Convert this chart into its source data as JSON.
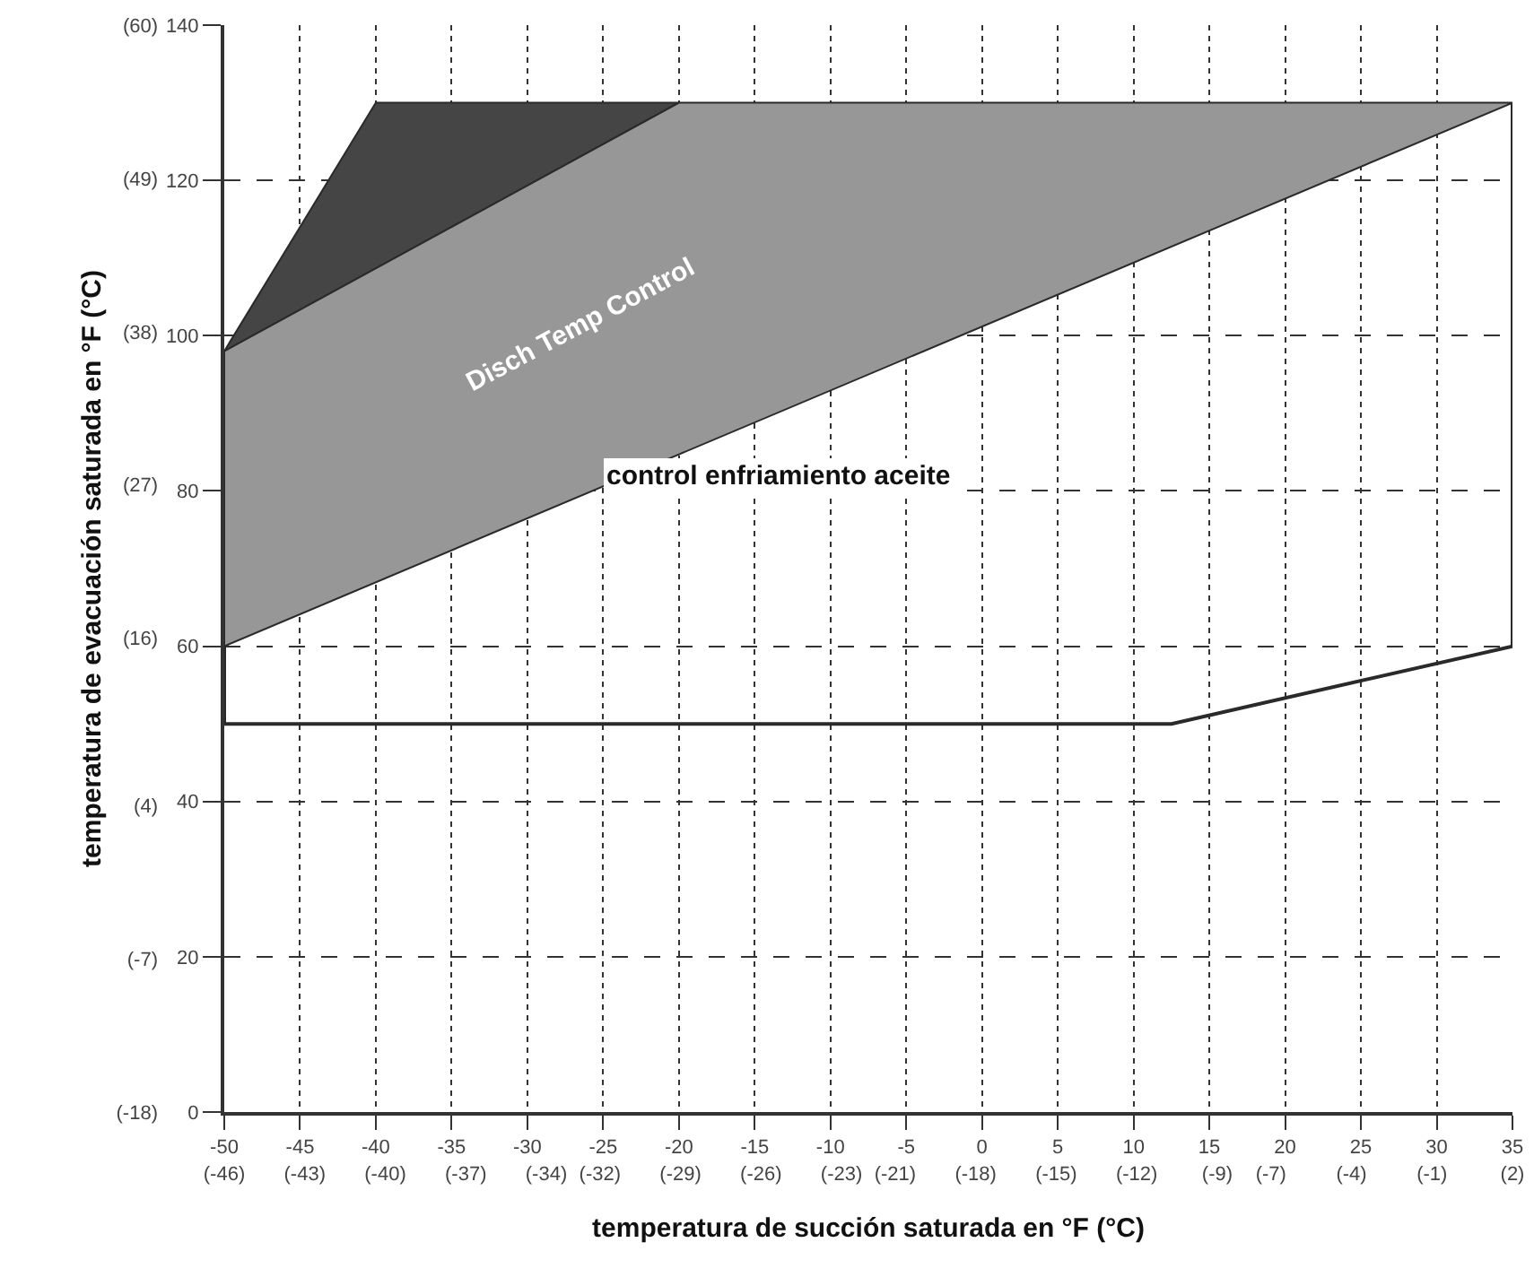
{
  "chart_data": {
    "type": "area",
    "xlabel": "temperatura de succión saturada en °F (°C)",
    "y2label": "temperatura de evacuación saturada en °F (°C)",
    "series": [
      {
        "color": "#454545",
        "x": [
          -50,
          -40,
          -20,
          -50
        ],
        "values": [
          98,
          130,
          130,
          98
        ]
      },
      {
        "color": "#979797",
        "x": [
          -50,
          -20,
          35,
          -50,
          -50
        ],
        "values": [
          98,
          130,
          130,
          60,
          98
        ]
      },
      {
        "type": "line",
        "color": "#2a2a2a",
        "x": [
          -50,
          -50,
          12.5,
          35,
          35
        ],
        "values": [
          60,
          50,
          50,
          60,
          130
        ]
      }
    ],
    "annotations": [
      "Disch Temp Control",
      "control enfriamiento aceite"
    ],
    "xlim": [
      -50,
      35
    ],
    "ylim": [
      0,
      140
    ],
    "xticks": [
      -50,
      -45,
      -40,
      -35,
      -30,
      -25,
      -20,
      -15,
      -10,
      -5,
      0,
      5,
      10,
      15,
      20,
      25,
      30,
      35
    ],
    "yticks": [
      0,
      20,
      40,
      60,
      80,
      100,
      120,
      140
    ],
    "x2lim": [
      -46,
      2
    ],
    "x2ticks": [
      {
        "value": -46,
        "label": "(-46)"
      },
      {
        "value": -43,
        "label": "(-43)"
      },
      {
        "value": -40,
        "label": "(-40)"
      },
      {
        "value": -37,
        "label": "(-37)"
      },
      {
        "value": -34,
        "label": "(-34)"
      },
      {
        "value": -32,
        "label": "(-32)"
      },
      {
        "value": -29,
        "label": "(-29)"
      },
      {
        "value": -26,
        "label": "(-26)"
      },
      {
        "value": -23,
        "label": "(-23)"
      },
      {
        "value": -21,
        "label": "(-21)"
      },
      {
        "value": -18,
        "label": "(-18)"
      },
      {
        "value": -15,
        "label": "(-15)"
      },
      {
        "value": -12,
        "label": "(-12)"
      },
      {
        "value": -9,
        "label": "(-9)"
      },
      {
        "value": -7,
        "label": "(-7)"
      },
      {
        "value": -4,
        "label": "(-4)"
      },
      {
        "value": -1,
        "label": "(-1)"
      },
      {
        "value": 2,
        "label": "(2)"
      }
    ],
    "y2lim": [
      -18,
      60
    ],
    "y2ticks": [
      {
        "value": -18,
        "label": "(-18)"
      },
      {
        "value": -7,
        "label": "(-7)"
      },
      {
        "value": 4,
        "label": "(4)"
      },
      {
        "value": 16,
        "label": "(16)"
      },
      {
        "value": 27,
        "label": "(27)"
      },
      {
        "value": 38,
        "label": "(38)"
      },
      {
        "value": 49,
        "label": "(49)"
      },
      {
        "value": 60,
        "label": "(60)"
      }
    ],
    "grid": true,
    "line_style": "solid"
  }
}
